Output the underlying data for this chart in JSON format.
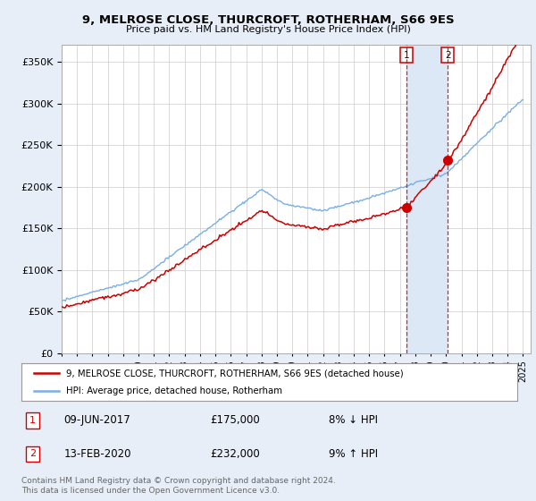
{
  "title": "9, MELROSE CLOSE, THURCROFT, ROTHERHAM, S66 9ES",
  "subtitle": "Price paid vs. HM Land Registry's House Price Index (HPI)",
  "legend_line1": "9, MELROSE CLOSE, THURCROFT, ROTHERHAM, S66 9ES (detached house)",
  "legend_line2": "HPI: Average price, detached house, Rotherham",
  "sale1_date_label": "09-JUN-2017",
  "sale1_year": 2017.45,
  "sale1_price": 175000,
  "sale1_pct": "8% ↓ HPI",
  "sale2_date_label": "13-FEB-2020",
  "sale2_year": 2020.12,
  "sale2_price": 232000,
  "sale2_pct": "9% ↑ HPI",
  "footer": "Contains HM Land Registry data © Crown copyright and database right 2024.\nThis data is licensed under the Open Government Licence v3.0.",
  "hpi_color": "#7aaee8",
  "sale_color": "#cc0000",
  "shade_color": "#dce8f5",
  "background_color": "#e8eef8",
  "plot_bg": "#ffffff",
  "ylim": [
    0,
    370000
  ],
  "yticks": [
    0,
    50000,
    100000,
    150000,
    200000,
    250000,
    300000,
    350000
  ],
  "xlim_start": 1995,
  "xlim_end": 2025.5
}
